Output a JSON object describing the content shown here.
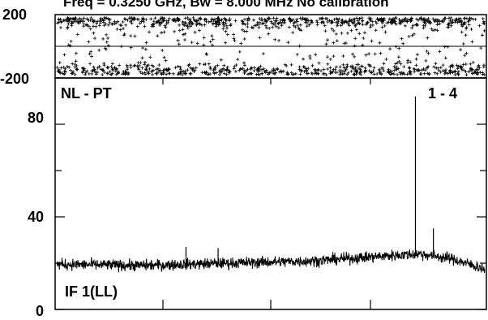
{
  "header": {
    "title": "Freq = 0.3250 GHz, Bw = 8.000 MHz   No calibration"
  },
  "chart_data": [
    {
      "type": "scatter",
      "panel": "phase",
      "ylim": [
        -200,
        200
      ],
      "yticks": [
        "200",
        "-200"
      ],
      "zero_line": true,
      "marker": "+",
      "n_points": 1300,
      "description": "phase (deg) vs channel; points crowd near +180 and -180 with sparser spread between"
    },
    {
      "type": "line",
      "panel": "amplitude",
      "baseline_label": "NL - PT",
      "correlation_label": "1 - 4",
      "polarization_label": "IF 1(LL)",
      "ylim": [
        0,
        100
      ],
      "yticks": [
        {
          "value": 80,
          "label": "80"
        },
        {
          "value": 40,
          "label": "40"
        },
        {
          "value": 0,
          "label": "0"
        }
      ],
      "n_channels": 1300,
      "baseline_trend": [
        {
          "x": 0.0,
          "y": 19.5
        },
        {
          "x": 0.2,
          "y": 19.0
        },
        {
          "x": 0.4,
          "y": 20.0
        },
        {
          "x": 0.6,
          "y": 21.0
        },
        {
          "x": 0.8,
          "y": 23.5
        },
        {
          "x": 0.85,
          "y": 24.0
        },
        {
          "x": 0.92,
          "y": 22.0
        },
        {
          "x": 1.0,
          "y": 17.5
        }
      ],
      "noise_amplitude": 1.2,
      "spikes": [
        {
          "x": 0.838,
          "y": 92
        },
        {
          "x": 0.88,
          "y": 35
        },
        {
          "x": 0.302,
          "y": 27
        },
        {
          "x": 0.377,
          "y": 26.5
        }
      ]
    }
  ]
}
